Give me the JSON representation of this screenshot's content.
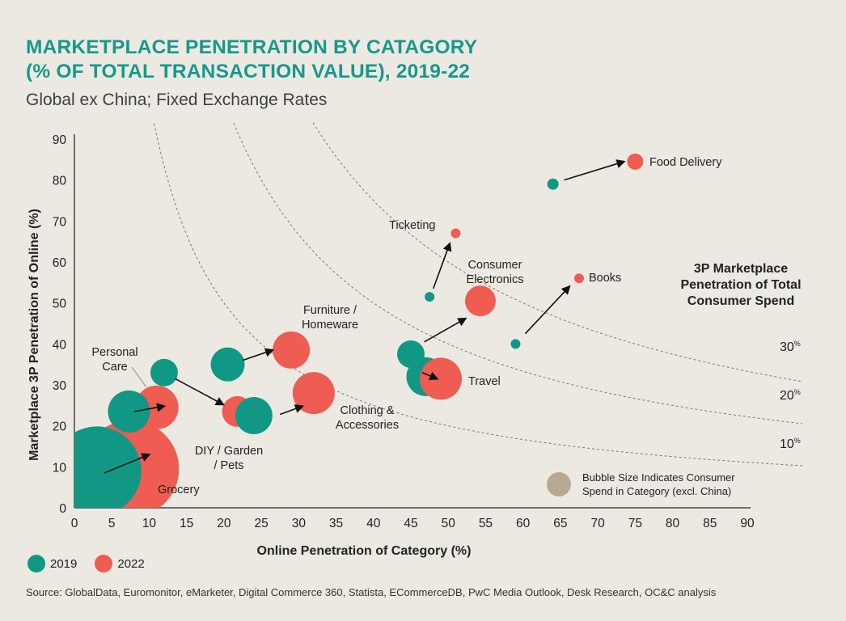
{
  "header": {
    "title_line1": "MARKETPLACE PENETRATION BY CATAGORY",
    "title_line2": "(% OF TOTAL TRANSACTION VALUE), 2019-22",
    "subtitle": "Global ex China; Fixed Exchange Rates"
  },
  "colors": {
    "y2019": "#119884",
    "y2022": "#ee5c52",
    "title": "#16998a",
    "size_key": "#b8aa92",
    "background": "#ece9e3"
  },
  "legend": {
    "items": [
      {
        "label": "2019",
        "color": "#119884"
      },
      {
        "label": "2022",
        "color": "#ee5c52"
      }
    ]
  },
  "source": "Source: GlobalData, Euromonitor, eMarketer, Digital Commerce 360, Statista, ECommerceDB, PwC Media Outlook, Desk Research, OC&C analysis",
  "chart_data": {
    "type": "scatter",
    "subtype": "bubble",
    "xlabel": "Online Penetration of Category (%)",
    "ylabel": "Marketplace 3P Penetration of Online (%)",
    "xlim": [
      0,
      90
    ],
    "ylim": [
      0,
      90
    ],
    "xticks": [
      0,
      5,
      10,
      15,
      20,
      25,
      30,
      35,
      40,
      45,
      50,
      55,
      60,
      65,
      70,
      75,
      80,
      85,
      90
    ],
    "yticks": [
      0,
      10,
      20,
      30,
      40,
      50,
      60,
      70,
      80,
      90
    ],
    "size_note": "Bubble Size Indicates Consumer Spend in Category (excl. China)",
    "iso_title": [
      "3P Marketplace",
      "Penetration of Total",
      "Consumer Spend"
    ],
    "isolines": [
      {
        "value": 10,
        "label_num": "10",
        "label_sup": "%"
      },
      {
        "value": 20,
        "label_num": "20",
        "label_sup": "%"
      },
      {
        "value": 30,
        "label_num": "30",
        "label_sup": "%"
      }
    ],
    "categories": [
      {
        "name": "Grocery",
        "label_lines": [
          "Grocery"
        ],
        "y2019": {
          "x": 3,
          "y": 9,
          "r": 55
        },
        "y2022": {
          "x": 7.5,
          "y": 9.5,
          "r": 60
        },
        "arrow": [
          [
            4,
            8.5
          ],
          [
            10,
            13
          ]
        ]
      },
      {
        "name": "Personal Care",
        "label_lines": [
          "Personal",
          "Care"
        ],
        "y2019": {
          "x": 7.3,
          "y": 23.5,
          "r": 26
        },
        "y2022": {
          "x": 11,
          "y": 24.5,
          "r": 27
        },
        "arrow": [
          [
            8,
            23.5
          ],
          [
            12,
            24.8
          ]
        ]
      },
      {
        "name": "DIY / Garden / Pets",
        "label_lines": [
          "DIY / Garden",
          "/ Pets"
        ],
        "y2019": {
          "x": 12,
          "y": 33,
          "r": 17
        },
        "y2022": {
          "x": 21.8,
          "y": 23.5,
          "r": 19
        },
        "arrow": [
          [
            13.5,
            31.5
          ],
          [
            19.9,
            25.2
          ]
        ]
      },
      {
        "name": "Furniture / Homeware",
        "label_lines": [
          "Furniture /",
          "Homeware"
        ],
        "y2019": {
          "x": 20.5,
          "y": 35,
          "r": 21
        },
        "y2022": {
          "x": 29,
          "y": 38.5,
          "r": 23
        },
        "arrow": [
          [
            22.5,
            36
          ],
          [
            26.5,
            38.5
          ]
        ]
      },
      {
        "name": "Clothing & Accessories",
        "label_lines": [
          "Clothing &",
          "Accessories"
        ],
        "y2019": {
          "x": 24,
          "y": 22.5,
          "r": 23
        },
        "y2022": {
          "x": 32,
          "y": 28,
          "r": 26
        },
        "arrow": [
          [
            27.5,
            22.8
          ],
          [
            30.5,
            24.8
          ]
        ]
      },
      {
        "name": "Consumer Electronics",
        "label_lines": [
          "Consumer",
          "Electronics"
        ],
        "y2019": {
          "x": 45,
          "y": 37.5,
          "r": 17
        },
        "y2022": {
          "x": 54.3,
          "y": 50.5,
          "r": 19
        },
        "arrow": [
          [
            46.8,
            40.5
          ],
          [
            52.3,
            46.2
          ]
        ]
      },
      {
        "name": "Travel",
        "label_lines": [
          "Travel"
        ],
        "y2019": {
          "x": 47,
          "y": 32,
          "r": 24
        },
        "y2022": {
          "x": 49,
          "y": 31.5,
          "r": 26
        },
        "arrow": [
          [
            46.5,
            33
          ],
          [
            48.5,
            31.5
          ]
        ]
      },
      {
        "name": "Ticketing",
        "label_lines": [
          "Ticketing"
        ],
        "y2019": {
          "x": 47.5,
          "y": 51.5,
          "r": 6
        },
        "y2022": {
          "x": 51,
          "y": 67,
          "r": 6
        },
        "arrow": [
          [
            48,
            53.5
          ],
          [
            50.2,
            64.5
          ]
        ]
      },
      {
        "name": "Books",
        "label_lines": [
          "Books"
        ],
        "y2019": {
          "x": 59,
          "y": 40,
          "r": 6
        },
        "y2022": {
          "x": 67.5,
          "y": 56,
          "r": 6
        },
        "arrow": [
          [
            60.3,
            42.5
          ],
          [
            66.2,
            54
          ]
        ]
      },
      {
        "name": "Food Delivery",
        "label_lines": [
          "Food Delivery"
        ],
        "y2019": {
          "x": 64,
          "y": 79,
          "r": 7
        },
        "y2022": {
          "x": 75,
          "y": 84.5,
          "r": 10
        },
        "arrow": [
          [
            65.5,
            80
          ],
          [
            73.5,
            84.5
          ]
        ]
      }
    ]
  }
}
